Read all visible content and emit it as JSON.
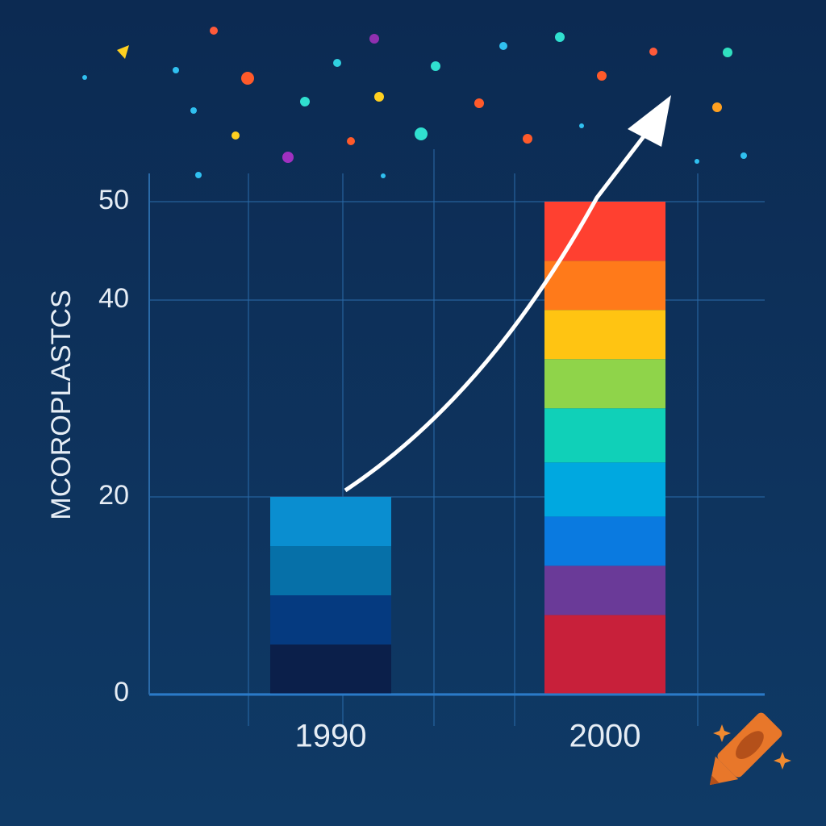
{
  "chart_data": {
    "type": "stacked-bar",
    "y_label": "MCOROPLASTCS",
    "categories": [
      "1990",
      "2000"
    ],
    "series": [
      {
        "colors": [
          "#0b1f4a",
          "#c8203a"
        ],
        "values": [
          5,
          8
        ]
      },
      {
        "colors": [
          "#053a80",
          "#6a3a98"
        ],
        "values": [
          5,
          5
        ]
      },
      {
        "colors": [
          "#0670a8",
          "#0a7ae0"
        ],
        "values": [
          5,
          5
        ]
      },
      {
        "colors": [
          "#0a8ed0",
          "#00a8e0"
        ],
        "values": [
          5,
          5.5
        ]
      },
      {
        "colors": [
          null,
          "#10d0b8"
        ],
        "values": [
          null,
          5.5
        ]
      },
      {
        "colors": [
          null,
          "#8fd44a"
        ],
        "values": [
          null,
          5
        ]
      },
      {
        "colors": [
          null,
          "#ffc412"
        ],
        "values": [
          null,
          5
        ]
      },
      {
        "colors": [
          null,
          "#ff7a1a"
        ],
        "values": [
          null,
          5
        ]
      },
      {
        "colors": [
          null,
          "#ff4030"
        ],
        "values": [
          null,
          6
        ]
      }
    ],
    "ylim": [
      0,
      50
    ],
    "yticks": [
      0,
      20,
      40,
      50
    ],
    "grid": true
  }
}
